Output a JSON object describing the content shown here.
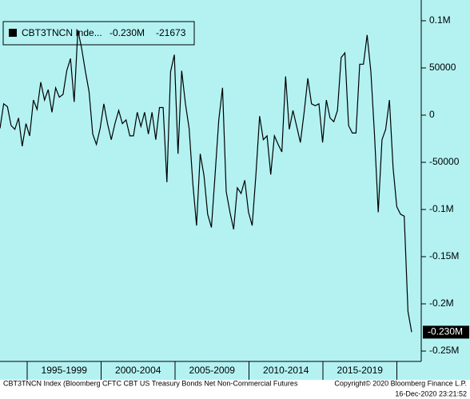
{
  "chart_data": {
    "type": "line",
    "series": [
      {
        "name": "CBT3TNCN Inde...",
        "color": "#000000",
        "values": [
          -14000,
          12000,
          9000,
          -11000,
          -15000,
          -3000,
          -33000,
          -9000,
          -22000,
          16000,
          6000,
          35000,
          16000,
          27000,
          3000,
          29000,
          19000,
          22000,
          47000,
          60000,
          14000,
          90000,
          71000,
          47000,
          25000,
          -20000,
          -31000,
          -14000,
          12000,
          -9000,
          -26000,
          -9000,
          5000,
          -9000,
          -5000,
          -22000,
          -22000,
          3000,
          -12000,
          3000,
          -20000,
          3000,
          -26000,
          8000,
          8000,
          -71000,
          46000,
          64000,
          -41000,
          47000,
          12000,
          -14000,
          -73000,
          -117000,
          -41000,
          -64000,
          -105000,
          -119000,
          -63000,
          -5000,
          29000,
          -81000,
          -103000,
          -121000,
          -77000,
          -83000,
          -69000,
          -103000,
          -117000,
          -64000,
          -1000,
          -26000,
          -22000,
          -63000,
          -22000,
          -31000,
          -39000,
          41000,
          -15000,
          5000,
          -12000,
          -29000,
          3000,
          39000,
          12000,
          10000,
          12000,
          -29000,
          16000,
          -3000,
          -7000,
          5000,
          61000,
          66000,
          -11000,
          -19000,
          -19000,
          54000,
          54000,
          85000,
          46000,
          -22000,
          -103000,
          -26000,
          -15000,
          16000,
          -56000,
          -97000,
          -105000,
          -107000,
          -208000,
          -230000
        ]
      }
    ],
    "last_value_label": "-0.230M",
    "legend_change": -21673,
    "periods": [
      "1995-1999",
      "2000-2004",
      "2005-2009",
      "2010-2014",
      "2015-2019"
    ],
    "ylim": [
      -261000,
      122000
    ],
    "yticks": [
      {
        "value": 100000,
        "label": "0.1M"
      },
      50000,
      0,
      -50000,
      {
        "value": -100000,
        "label": "-0.1M"
      },
      {
        "value": -150000,
        "label": "-0.15M"
      },
      {
        "value": -200000,
        "label": "-0.2M"
      },
      {
        "value": -250000,
        "label": "-0.25M"
      }
    ],
    "background": "#b4f2f2",
    "footer_left": "CBT3TNCN Index (Bloomberg CFTC CBT US Treasury Bonds Net Non-Commercial Futures",
    "copyright": "Copyright© 2020 Bloomberg Finance L.P.",
    "timestamp": "16-Dec-2020 23:21:52"
  }
}
